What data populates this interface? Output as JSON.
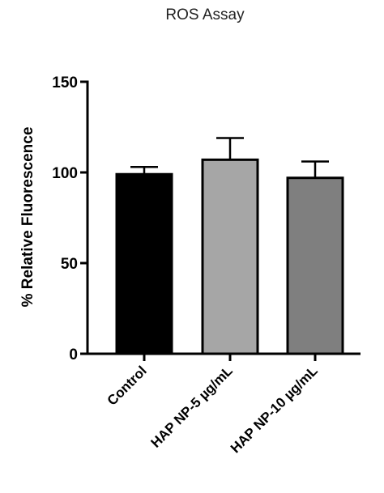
{
  "chart_data": {
    "type": "bar",
    "title": "ROS Assay",
    "ylabel": "% Relative Fluorescence",
    "xlabel": "",
    "ylim": [
      0,
      150
    ],
    "yticks": [
      0,
      50,
      100,
      150
    ],
    "categories": [
      "Control",
      "HAP NP-5 µg/mL",
      "HAP NP-10 µg/mL"
    ],
    "values": [
      99,
      107,
      97
    ],
    "errors": [
      4,
      12,
      9
    ],
    "bar_colors": [
      "#000000",
      "#a6a6a6",
      "#7f7f7f"
    ],
    "edge_color": "#000000",
    "grid": false,
    "legend": "none"
  }
}
